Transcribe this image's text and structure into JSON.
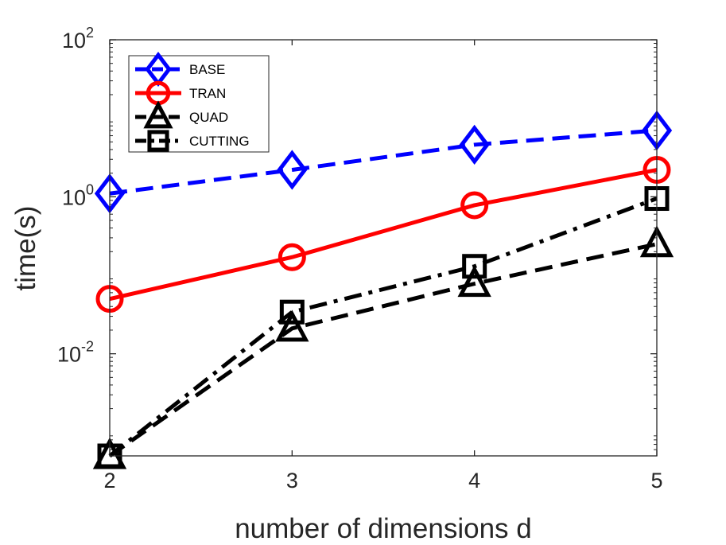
{
  "chart_data": {
    "type": "line",
    "xlabel": "number of dimensions d",
    "ylabel": "time(s)",
    "yscale": "log",
    "ylim": [
      0.0005,
      100
    ],
    "xlim": [
      2,
      5
    ],
    "x": [
      2,
      3,
      4,
      5
    ],
    "x_tick_labels": [
      "2",
      "3",
      "4",
      "5"
    ],
    "y_ticks": [
      {
        "value": 0.01,
        "base": "10",
        "exp": "-2"
      },
      {
        "value": 1,
        "base": "10",
        "exp": "0"
      },
      {
        "value": 100,
        "base": "10",
        "exp": "2"
      }
    ],
    "legend_position": "top-left",
    "series": [
      {
        "name": "BASE",
        "values": [
          1.1,
          2.2,
          4.6,
          7.0
        ],
        "color": "#0000ff",
        "dash": "dashed",
        "marker": "diamond"
      },
      {
        "name": "TRAN",
        "values": [
          0.05,
          0.17,
          0.78,
          2.2
        ],
        "color": "#ff0000",
        "dash": "solid",
        "marker": "circle"
      },
      {
        "name": "QUAD",
        "values": [
          0.0005,
          0.021,
          0.078,
          0.25
        ],
        "color": "#000000",
        "dash": "dashed",
        "marker": "triangle"
      },
      {
        "name": "CUTTING",
        "values": [
          0.0005,
          0.034,
          0.13,
          0.95
        ],
        "color": "#000000",
        "dash": "dashdot",
        "marker": "square"
      }
    ]
  }
}
